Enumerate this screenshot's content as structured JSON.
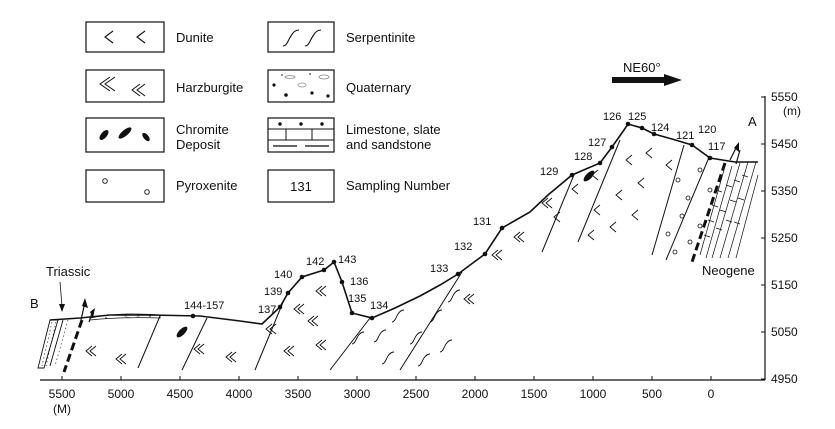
{
  "legend": {
    "dunite": "Dunite",
    "harzburgite": "Harzburgite",
    "chromite_1": "Chromite",
    "chromite_2": "Deposit",
    "pyroxenite": "Pyroxenite",
    "serpentinite": "Serpentinite",
    "quaternary": "Quaternary",
    "limestone_1": "Limestone, slate",
    "limestone_2": "and sandstone",
    "sampling_symbol": "131",
    "sampling": "Sampling Number"
  },
  "direction": "NE60°",
  "endpoints": {
    "a": "A",
    "b": "B"
  },
  "formations": {
    "triassic": "Triassic",
    "neogene": "Neogene"
  },
  "axis": {
    "x_ticks": [
      "5500",
      "5000",
      "4500",
      "4000",
      "3500",
      "3000",
      "2500",
      "2000",
      "1500",
      "1000",
      "500",
      "0"
    ],
    "x_unit": "(M)",
    "y_ticks": [
      "5550",
      "5450",
      "5350",
      "5250",
      "5150",
      "5050",
      "4950"
    ],
    "y_unit": "(m)"
  },
  "samples": [
    "144-157",
    "137",
    "139",
    "140",
    "142",
    "143",
    "136",
    "135",
    "134",
    "133",
    "132",
    "131",
    "129",
    "128",
    "127",
    "126",
    "125",
    "124",
    "121",
    "120",
    "117"
  ]
}
